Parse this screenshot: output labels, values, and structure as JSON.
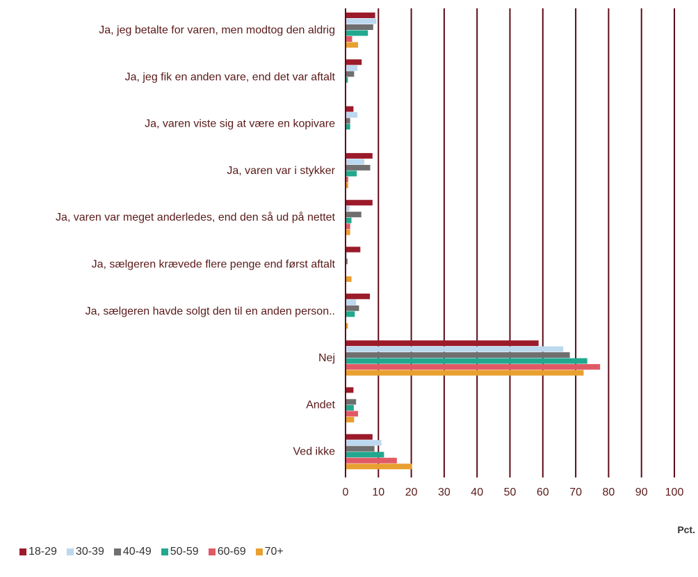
{
  "chart_data": {
    "type": "bar",
    "orientation": "horizontal",
    "categories": [
      "Ja, jeg betalte for varen, men modtog den aldrig",
      "Ja, jeg fik en anden vare, end det var aftalt",
      "Ja, varen viste sig at være en kopivare",
      "Ja, varen var i stykker",
      "Ja, varen var meget anderledes, end den så ud på nettet",
      "Ja, sælgeren krævede flere penge end først aftalt",
      "Ja, sælgeren havde solgt den til en anden person..",
      "Nej",
      "Andet",
      "Ved ikke"
    ],
    "series": [
      {
        "name": "18-29",
        "color": "#9b1b2a",
        "values": [
          8.8,
          4.7,
          2.2,
          8.0,
          8.0,
          4.3,
          7.2,
          58.5,
          2.2,
          8.0
        ]
      },
      {
        "name": "30-39",
        "color": "#bcd8ee",
        "values": [
          9.2,
          3.4,
          3.4,
          5.5,
          1.0,
          0.3,
          3.0,
          66.0,
          0.0,
          10.7
        ]
      },
      {
        "name": "40-49",
        "color": "#6f6f6f",
        "values": [
          8.2,
          2.4,
          1.2,
          7.3,
          4.6,
          0.4,
          3.9,
          68.0,
          3.0,
          8.6
        ]
      },
      {
        "name": "50-59",
        "color": "#22a88e",
        "values": [
          6.6,
          0.5,
          1.2,
          3.2,
          1.6,
          0.0,
          2.6,
          73.3,
          2.3,
          11.5
        ]
      },
      {
        "name": "60-69",
        "color": "#e05a66",
        "values": [
          1.8,
          0.0,
          0.0,
          0.6,
          1.2,
          0.0,
          0.0,
          77.2,
          3.6,
          15.4
        ]
      },
      {
        "name": "70+",
        "color": "#e8a030",
        "values": [
          3.6,
          0.0,
          0.0,
          0.6,
          1.2,
          1.6,
          0.5,
          72.2,
          2.4,
          20.0
        ]
      }
    ],
    "xlim": [
      0,
      100
    ],
    "xticks": [
      "0",
      "10",
      "20",
      "30",
      "40",
      "50",
      "60",
      "70",
      "80",
      "90",
      "100"
    ],
    "xlabel": "Pct.",
    "grid": true,
    "grid_color": "#5c0a16",
    "label_color": "#5a1a1a",
    "legend_position": "bottom-left"
  }
}
